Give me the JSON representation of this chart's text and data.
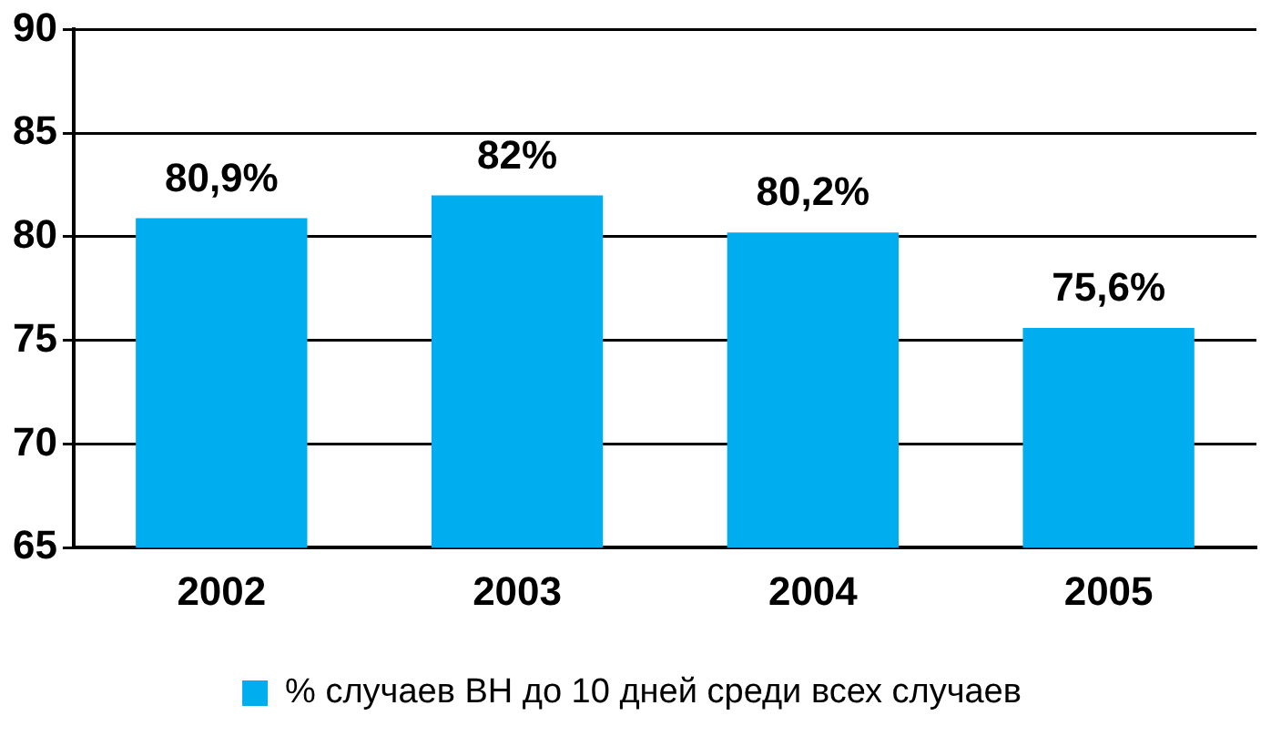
{
  "chart_data": {
    "type": "bar",
    "categories": [
      "2002",
      "2003",
      "2004",
      "2005"
    ],
    "series": [
      {
        "name": "% случаев ВН до 10 дней среди всех случаев",
        "color": "#00aeef",
        "values": [
          80.9,
          82,
          80.2,
          75.6
        ],
        "value_labels": [
          "80,9%",
          "82%",
          "80,2%",
          "75,6%"
        ]
      }
    ],
    "ylim": [
      65,
      90
    ],
    "yticks": [
      65,
      70,
      75,
      80,
      85,
      90
    ],
    "grid": "y",
    "legend": "bottom"
  }
}
